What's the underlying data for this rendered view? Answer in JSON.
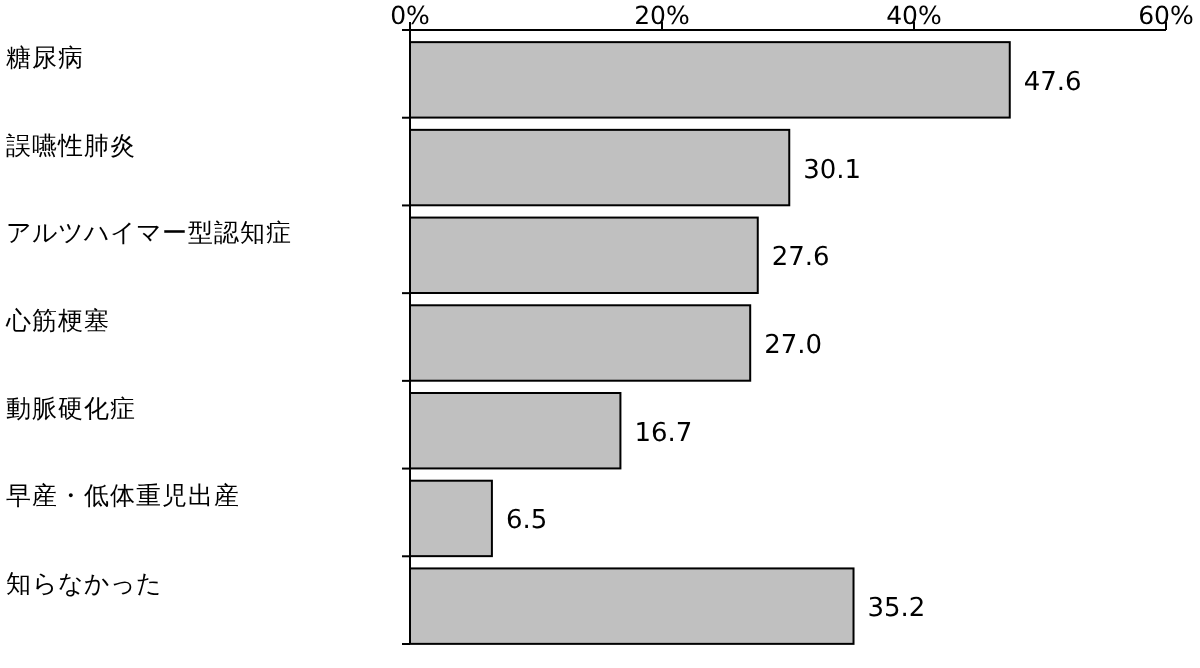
{
  "chart_data": {
    "type": "bar",
    "orientation": "horizontal",
    "categories": [
      "糖尿病",
      "誤嚥性肺炎",
      "アルツハイマー型認知症",
      "心筋梗塞",
      "動脈硬化症",
      "早産・低体重児出産",
      "知らなかった"
    ],
    "values": [
      47.6,
      30.1,
      27.6,
      27.0,
      16.7,
      6.5,
      35.2
    ],
    "value_labels": [
      "47.6",
      "30.1",
      "27.6",
      "27.0",
      "16.7",
      "6.5",
      "35.2"
    ],
    "color": "#c0c0c0",
    "xlim": [
      0,
      60
    ],
    "xticks": [
      {
        "value": 0,
        "label": "0%"
      },
      {
        "value": 20,
        "label": "20%"
      },
      {
        "value": 40,
        "label": "40%"
      },
      {
        "value": 60,
        "label": "60%"
      }
    ]
  }
}
